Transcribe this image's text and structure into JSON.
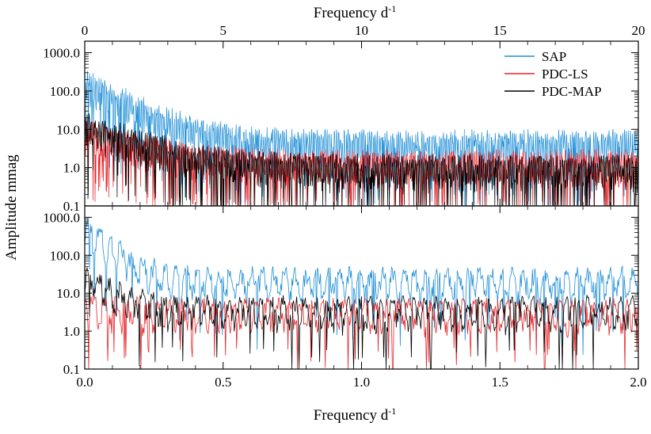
{
  "chart_data": [
    {
      "panel": "top",
      "type": "line",
      "xlabel": "Frequency d",
      "xlabel_sup": "-1",
      "x_axis_position": "top",
      "xlim": [
        0,
        20
      ],
      "xticks": [
        "0",
        "5",
        "10",
        "15",
        "20"
      ],
      "ylabel": "Amplitude mmag",
      "yscale": "log",
      "ylim": [
        0.1,
        2000
      ],
      "yticks": [
        "0.1",
        "1.0",
        "10.0",
        "100.0",
        "1000.0"
      ],
      "legend_position": "top-right",
      "series": [
        {
          "name": "SAP",
          "color": "#1f8fd6",
          "baseline_start": 150,
          "baseline_floor": 4.0,
          "decay_scale": 0.6
        },
        {
          "name": "PDC-LS",
          "color": "#e8262a",
          "baseline_start": 8,
          "baseline_floor": 1.2,
          "decay_scale": 0.8
        },
        {
          "name": "PDC-MAP",
          "color": "#000000",
          "baseline_start": 12,
          "baseline_floor": 0.9,
          "decay_scale": 0.8
        }
      ]
    },
    {
      "panel": "bottom",
      "type": "line",
      "xlabel": "Frequency d",
      "xlabel_sup": "-1",
      "x_axis_position": "bottom",
      "xlim": [
        0.0,
        2.0
      ],
      "xticks": [
        "0.0",
        "0.5",
        "1.0",
        "1.5",
        "2.0"
      ],
      "yscale": "log",
      "ylim": [
        0.1,
        2000
      ],
      "yticks": [
        "0.1",
        "1.0",
        "10.0",
        "100.0",
        "1000.0"
      ],
      "series": [
        {
          "name": "SAP",
          "color": "#1f8fd6",
          "baseline_start": 500,
          "baseline_floor": 20,
          "decay_scale": 0.35
        },
        {
          "name": "PDC-LS",
          "color": "#e8262a",
          "baseline_start": 5,
          "baseline_floor": 3.0,
          "decay_scale": 0.5
        },
        {
          "name": "PDC-MAP",
          "color": "#000000",
          "baseline_start": 25,
          "baseline_floor": 3.5,
          "decay_scale": 0.4
        }
      ]
    }
  ],
  "legend": {
    "items": [
      "SAP",
      "PDC-LS",
      "PDC-MAP"
    ]
  }
}
